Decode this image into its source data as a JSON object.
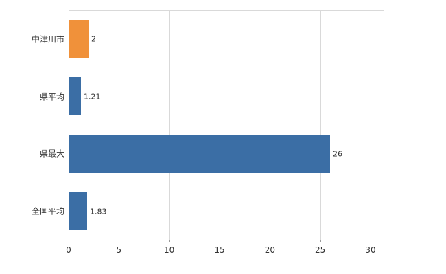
{
  "chart_data": {
    "type": "bar",
    "orientation": "horizontal",
    "title": "",
    "categories": [
      "中津川市",
      "県平均",
      "県最大",
      "全国平均"
    ],
    "values": [
      2,
      1.21,
      26,
      1.83
    ],
    "value_labels": [
      "2",
      "1.21",
      "26",
      "1.83"
    ],
    "bar_colors": [
      "#f0913a",
      "#3b6ea5",
      "#3b6ea5",
      "#3b6ea5"
    ],
    "xlabel": "",
    "ylabel": "",
    "xlim": [
      0,
      30
    ],
    "xticks": [
      0,
      5,
      10,
      15,
      20,
      25,
      30
    ],
    "grid": "vertical",
    "legend": "none",
    "colors": {
      "grid": "#d9d9d9",
      "axis": "#9a9a9a",
      "value_text": "#333333",
      "label_text": "#333333",
      "background": "#ffffff"
    }
  }
}
